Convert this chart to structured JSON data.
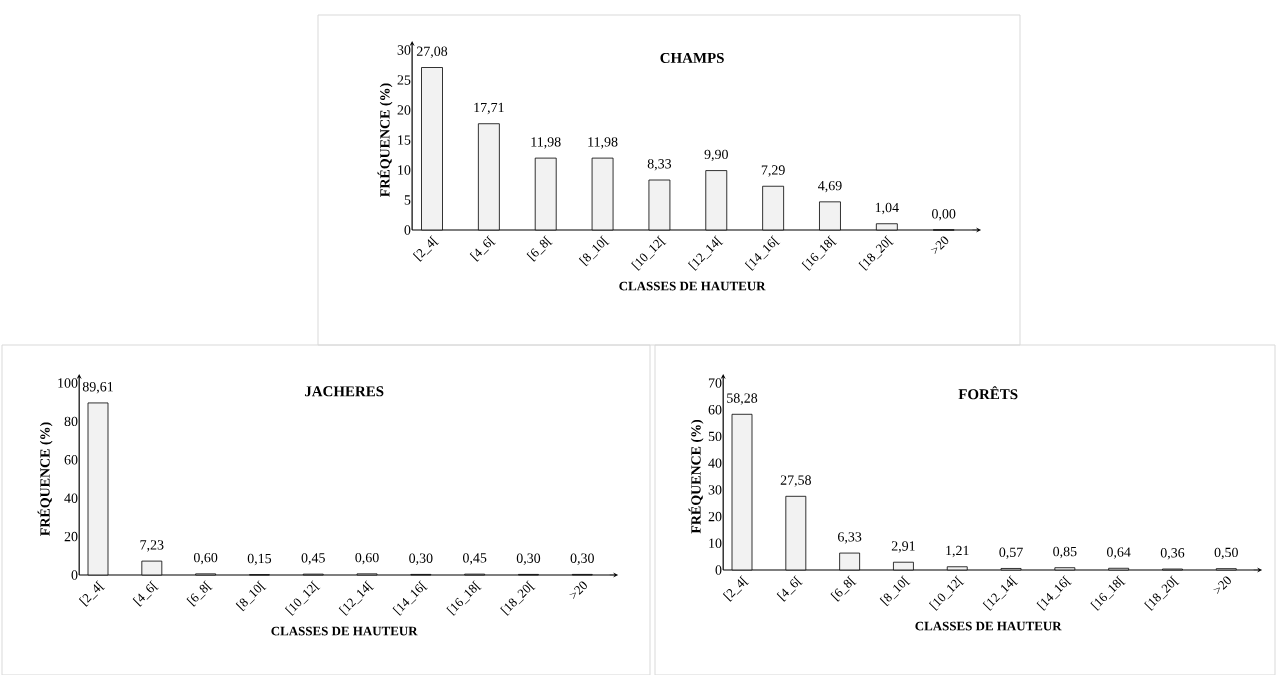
{
  "chart_data": [
    {
      "type": "bar",
      "title": "CHAMPS",
      "xlabel": "CLASSES DE HAUTEUR",
      "ylabel": "FRÉQUENCE (%)",
      "categories": [
        "[2_4[",
        "[4_6[",
        "[6_8[",
        "[8_10[",
        "[10_12[",
        "[12_14[",
        "[14_16[",
        "[16_18[",
        "[18_20[",
        ">20"
      ],
      "values": [
        27.08,
        17.71,
        11.98,
        11.98,
        8.33,
        9.9,
        7.29,
        4.69,
        1.04,
        0.0
      ],
      "value_labels": [
        "27,08",
        "17,71",
        "11,98",
        "11,98",
        "8,33",
        "9,90",
        "7,29",
        "4,69",
        "1,04",
        "0,00"
      ],
      "color": "#f2f2f2",
      "ylim": [
        0,
        30
      ],
      "yticks": [
        0,
        5,
        10,
        15,
        20,
        25,
        30
      ]
    },
    {
      "type": "bar",
      "title": "JACHERES",
      "xlabel": "CLASSES DE HAUTEUR",
      "ylabel": "FRÉQUENCE (%)",
      "categories": [
        "[2_4[",
        "[4_6[",
        "[6_8[",
        "[8_10[",
        "[10_12[",
        "[12_14[",
        "[14_16[",
        "[16_18[",
        "[18_20[",
        ">20"
      ],
      "values": [
        89.61,
        7.23,
        0.6,
        0.15,
        0.45,
        0.6,
        0.3,
        0.45,
        0.3,
        0.3
      ],
      "value_labels": [
        "89,61",
        "7,23",
        "0,60",
        "0,15",
        "0,45",
        "0,60",
        "0,30",
        "0,45",
        "0,30",
        "0,30"
      ],
      "color": "#f2f2f2",
      "ylim": [
        0,
        100
      ],
      "yticks": [
        0,
        20,
        40,
        60,
        80,
        100
      ]
    },
    {
      "type": "bar",
      "title": "FORÊTS",
      "xlabel": "CLASSES DE HAUTEUR",
      "ylabel": "FRÉQUENCE (%)",
      "categories": [
        "[2_4[",
        "[4_6[",
        "[6_8[",
        "[8_10[",
        "[10_12[",
        "[12_14[",
        "[14_16[",
        "[16_18[",
        "[18_20[",
        ">20"
      ],
      "values": [
        58.28,
        27.58,
        6.33,
        2.91,
        1.21,
        0.57,
        0.85,
        0.64,
        0.36,
        0.5
      ],
      "value_labels": [
        "58,28",
        "27,58",
        "6,33",
        "2,91",
        "1,21",
        "0,57",
        "0,85",
        "0,64",
        "0,36",
        "0,50"
      ],
      "color": "#f2f2f2",
      "ylim": [
        0,
        70
      ],
      "yticks": [
        0,
        10,
        20,
        30,
        40,
        50,
        60,
        70
      ]
    }
  ]
}
